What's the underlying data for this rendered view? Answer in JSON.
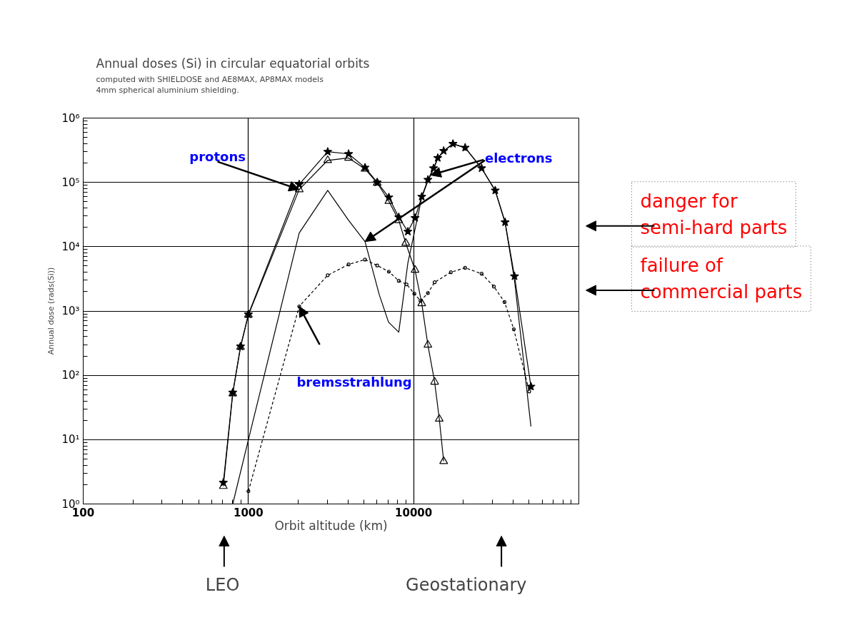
{
  "chart_data": {
    "type": "line",
    "title": "Annual doses (Si) in circular equatorial orbits",
    "subtitle": "computed with SHIELDOSE and AE8MAX, AP8MAX models\n4mm spherical aluminium shielding.",
    "xlabel": "Orbit altitude (km)",
    "ylabel": "Annual dose (rads(Si))",
    "log": "xy",
    "xlim": [
      100,
      100000
    ],
    "ylim": [
      1,
      1000000
    ],
    "xticks": [
      100,
      1000,
      10000
    ],
    "yticks": [
      {
        "value": 1,
        "label": "10⁰"
      },
      {
        "value": 10,
        "label": "10¹"
      },
      {
        "value": 100,
        "label": "10²"
      },
      {
        "value": 1000,
        "label": "10³"
      },
      {
        "value": 10000,
        "label": "10⁴"
      },
      {
        "value": 100000,
        "label": "10⁵"
      },
      {
        "value": 1000000,
        "label": "10⁶"
      }
    ],
    "grid": true,
    "legend": false,
    "series": [
      {
        "color": "#000000",
        "marker": "star",
        "line_style": "solid",
        "x": [
          705,
          804,
          896,
          1000,
          2030,
          3020,
          4040,
          5080,
          6020,
          7080,
          8130,
          9230,
          10200,
          11200,
          12200,
          13200,
          14000,
          15200,
          17300,
          20500,
          25800,
          31200,
          35800,
          40800,
          51300
        ],
        "values": [
          2.15,
          54,
          282,
          890,
          93000,
          300000,
          277000,
          170000,
          100000,
          58500,
          28700,
          17200,
          28000,
          60000,
          110000,
          166000,
          240000,
          309000,
          398000,
          347000,
          166000,
          75000,
          24000,
          3470,
          67
        ]
      },
      {
        "name": "protons",
        "color": "#000000",
        "marker": "triangle",
        "line_style": "solid",
        "x": [
          705,
          804,
          896,
          1000,
          2030,
          3020,
          4040,
          5080,
          6020,
          7080,
          8130,
          8960,
          10200,
          11200,
          12200,
          13400,
          14300,
          15200
        ],
        "values": [
          1.89,
          52,
          275,
          870,
          77500,
          220000,
          240000,
          162000,
          98000,
          51000,
          25700,
          11400,
          4340,
          1310,
          297,
          79,
          21,
          4.6
        ]
      },
      {
        "name": "electrons",
        "color": "#000000",
        "marker": "none",
        "line_style": "solid",
        "x": [
          804,
          1000,
          2030,
          3020,
          4040,
          5080,
          6200,
          7050,
          8130,
          9230,
          11200,
          12200,
          13200,
          14000,
          15200,
          17300,
          20500,
          25800,
          31200,
          35800,
          40800,
          51300
        ],
        "values": [
          1,
          10,
          16300,
          75000,
          25700,
          12000,
          1780,
          670,
          470,
          5600,
          58000,
          105000,
          160000,
          235000,
          305000,
          395000,
          345000,
          165000,
          74000,
          23500,
          3000,
          16
        ]
      },
      {
        "name": "bremsstrahlung",
        "color": "#000000",
        "marker": "circle",
        "line_style": "dashed",
        "x": [
          1000,
          2030,
          3020,
          4040,
          5080,
          6020,
          7080,
          8130,
          9060,
          10100,
          11000,
          12200,
          13400,
          16800,
          20500,
          25800,
          30600,
          35500,
          40400,
          50100
        ],
        "values": [
          1.58,
          1180,
          3600,
          5300,
          6300,
          5100,
          4100,
          2950,
          2600,
          1860,
          1440,
          1900,
          2800,
          4000,
          4700,
          3800,
          2400,
          1380,
          520,
          56
        ]
      }
    ],
    "annotations": [
      "danger for\nsemi-hard parts",
      "failure of\ncommercial parts",
      "LEO",
      "Geostationary"
    ]
  }
}
